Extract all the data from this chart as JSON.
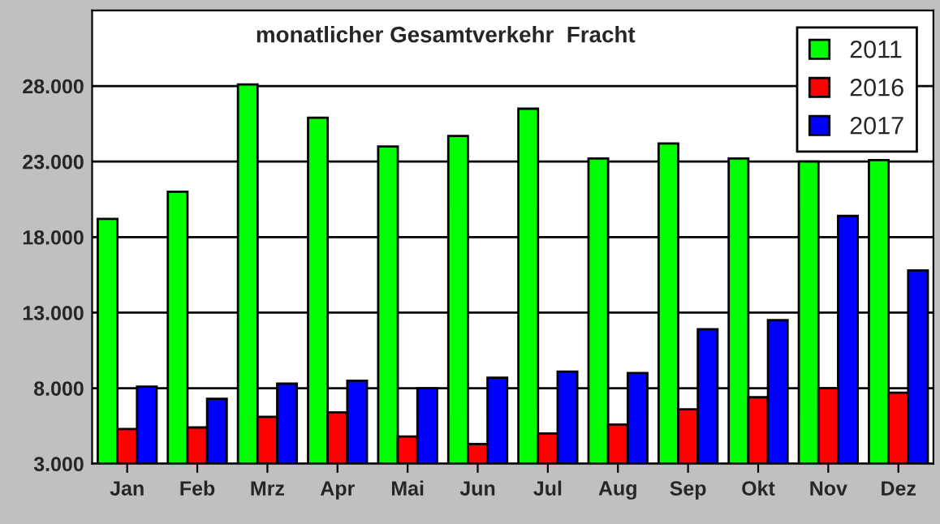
{
  "chart_data": {
    "type": "bar",
    "title": "monatlicher Gesamtverkehr  Fracht",
    "categories": [
      "Jan",
      "Feb",
      "Mrz",
      "Apr",
      "Mai",
      "Jun",
      "Jul",
      "Aug",
      "Sep",
      "Okt",
      "Nov",
      "Dez"
    ],
    "series": [
      {
        "name": "2011",
        "color": "#00ff00",
        "values": [
          19200,
          21000,
          28100,
          25900,
          24000,
          24700,
          26500,
          23200,
          24200,
          23200,
          23000,
          23100
        ]
      },
      {
        "name": "2016",
        "color": "#ff0000",
        "values": [
          5300,
          5400,
          6100,
          6400,
          4800,
          4300,
          5000,
          5600,
          6600,
          7400,
          8000,
          7700
        ]
      },
      {
        "name": "2017",
        "color": "#0000ff",
        "values": [
          8100,
          7300,
          8300,
          8500,
          8000,
          8700,
          9100,
          9000,
          11900,
          12500,
          19400,
          15800
        ]
      }
    ],
    "ylim": [
      3000,
      33000
    ],
    "yticks": [
      {
        "value": 3000,
        "label": "3.000"
      },
      {
        "value": 8000,
        "label": "8.000"
      },
      {
        "value": 13000,
        "label": "13.000"
      },
      {
        "value": 18000,
        "label": "18.000"
      },
      {
        "value": 23000,
        "label": "23.000"
      },
      {
        "value": 28000,
        "label": "28.000"
      }
    ],
    "grid": "y",
    "legend": "top right"
  }
}
